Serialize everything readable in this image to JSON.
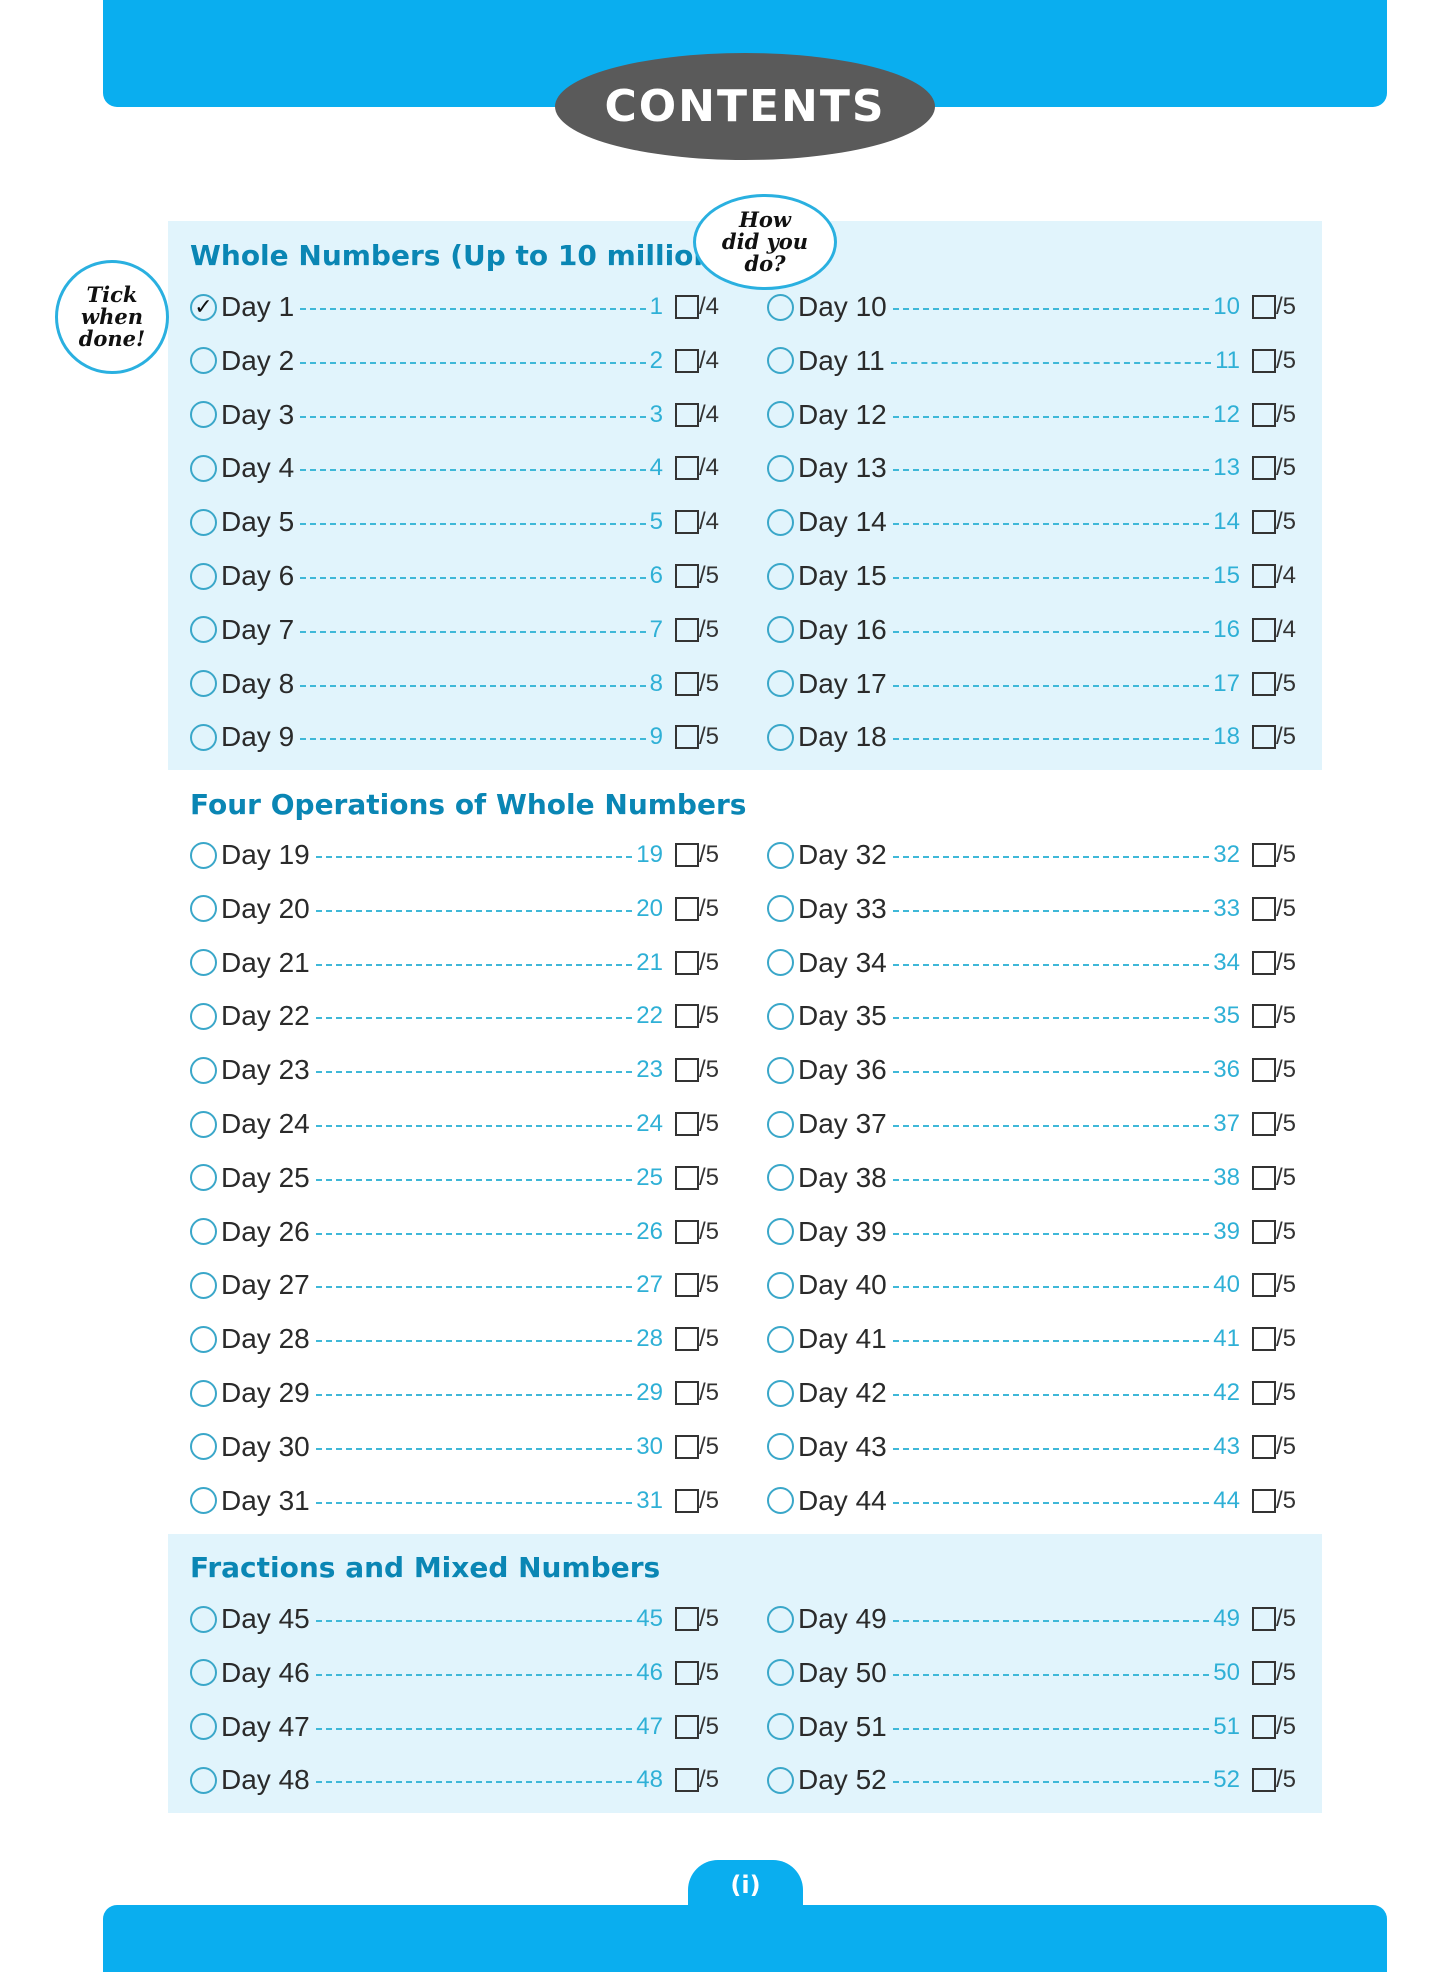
{
  "title": "CONTENTS",
  "callouts": {
    "tick": "Tick when done!",
    "how": "How did you do?"
  },
  "page_number": "(i)",
  "colors": {
    "brand_blue": "#0aaeef",
    "panel": "#e1f4fc",
    "heading": "#0a86b4",
    "oval": "#5a5a5a"
  },
  "sections": [
    {
      "title": "Whole Numbers (Up to 10 million)",
      "left": [
        {
          "label": "Day 1",
          "page": "1",
          "max": "/4",
          "done": true
        },
        {
          "label": "Day 2",
          "page": "2",
          "max": "/4",
          "done": false
        },
        {
          "label": "Day 3",
          "page": "3",
          "max": "/4",
          "done": false
        },
        {
          "label": "Day 4",
          "page": "4",
          "max": "/4",
          "done": false
        },
        {
          "label": "Day 5",
          "page": "5",
          "max": "/4",
          "done": false
        },
        {
          "label": "Day 6",
          "page": "6",
          "max": "/5",
          "done": false
        },
        {
          "label": "Day 7",
          "page": "7",
          "max": "/5",
          "done": false
        },
        {
          "label": "Day 8",
          "page": "8",
          "max": "/5",
          "done": false
        },
        {
          "label": "Day 9",
          "page": "9",
          "max": "/5",
          "done": false
        }
      ],
      "right": [
        {
          "label": "Day 10",
          "page": "10",
          "max": "/5",
          "done": false
        },
        {
          "label": "Day 11",
          "page": "11",
          "max": "/5",
          "done": false
        },
        {
          "label": "Day 12",
          "page": "12",
          "max": "/5",
          "done": false
        },
        {
          "label": "Day 13",
          "page": "13",
          "max": "/5",
          "done": false
        },
        {
          "label": "Day 14",
          "page": "14",
          "max": "/5",
          "done": false
        },
        {
          "label": "Day 15",
          "page": "15",
          "max": "/4",
          "done": false
        },
        {
          "label": "Day 16",
          "page": "16",
          "max": "/4",
          "done": false
        },
        {
          "label": "Day 17",
          "page": "17",
          "max": "/5",
          "done": false
        },
        {
          "label": "Day 18",
          "page": "18",
          "max": "/5",
          "done": false
        }
      ]
    },
    {
      "title": "Four Operations of Whole Numbers",
      "left": [
        {
          "label": "Day 19",
          "page": "19",
          "max": "/5",
          "done": false
        },
        {
          "label": "Day 20",
          "page": "20",
          "max": "/5",
          "done": false
        },
        {
          "label": "Day 21",
          "page": "21",
          "max": "/5",
          "done": false
        },
        {
          "label": "Day 22",
          "page": "22",
          "max": "/5",
          "done": false
        },
        {
          "label": "Day 23",
          "page": "23",
          "max": "/5",
          "done": false
        },
        {
          "label": "Day 24",
          "page": "24",
          "max": "/5",
          "done": false
        },
        {
          "label": "Day 25",
          "page": "25",
          "max": "/5",
          "done": false
        },
        {
          "label": "Day 26",
          "page": "26",
          "max": "/5",
          "done": false
        },
        {
          "label": "Day 27",
          "page": "27",
          "max": "/5",
          "done": false
        },
        {
          "label": "Day 28",
          "page": "28",
          "max": "/5",
          "done": false
        },
        {
          "label": "Day 29",
          "page": "29",
          "max": "/5",
          "done": false
        },
        {
          "label": "Day 30",
          "page": "30",
          "max": "/5",
          "done": false
        },
        {
          "label": "Day 31",
          "page": "31",
          "max": "/5",
          "done": false
        }
      ],
      "right": [
        {
          "label": "Day 32",
          "page": "32",
          "max": "/5",
          "done": false
        },
        {
          "label": "Day 33",
          "page": "33",
          "max": "/5",
          "done": false
        },
        {
          "label": "Day 34",
          "page": "34",
          "max": "/5",
          "done": false
        },
        {
          "label": "Day 35",
          "page": "35",
          "max": "/5",
          "done": false
        },
        {
          "label": "Day 36",
          "page": "36",
          "max": "/5",
          "done": false
        },
        {
          "label": "Day 37",
          "page": "37",
          "max": "/5",
          "done": false
        },
        {
          "label": "Day 38",
          "page": "38",
          "max": "/5",
          "done": false
        },
        {
          "label": "Day 39",
          "page": "39",
          "max": "/5",
          "done": false
        },
        {
          "label": "Day 40",
          "page": "40",
          "max": "/5",
          "done": false
        },
        {
          "label": "Day 41",
          "page": "41",
          "max": "/5",
          "done": false
        },
        {
          "label": "Day 42",
          "page": "42",
          "max": "/5",
          "done": false
        },
        {
          "label": "Day 43",
          "page": "43",
          "max": "/5",
          "done": false
        },
        {
          "label": "Day 44",
          "page": "44",
          "max": "/5",
          "done": false
        }
      ]
    },
    {
      "title": "Fractions and Mixed Numbers",
      "left": [
        {
          "label": "Day 45",
          "page": "45",
          "max": "/5",
          "done": false
        },
        {
          "label": "Day 46",
          "page": "46",
          "max": "/5",
          "done": false
        },
        {
          "label": "Day 47",
          "page": "47",
          "max": "/5",
          "done": false
        },
        {
          "label": "Day 48",
          "page": "48",
          "max": "/5",
          "done": false
        }
      ],
      "right": [
        {
          "label": "Day 49",
          "page": "49",
          "max": "/5",
          "done": false
        },
        {
          "label": "Day 50",
          "page": "50",
          "max": "/5",
          "done": false
        },
        {
          "label": "Day 51",
          "page": "51",
          "max": "/5",
          "done": false
        },
        {
          "label": "Day 52",
          "page": "52",
          "max": "/5",
          "done": false
        }
      ]
    }
  ]
}
